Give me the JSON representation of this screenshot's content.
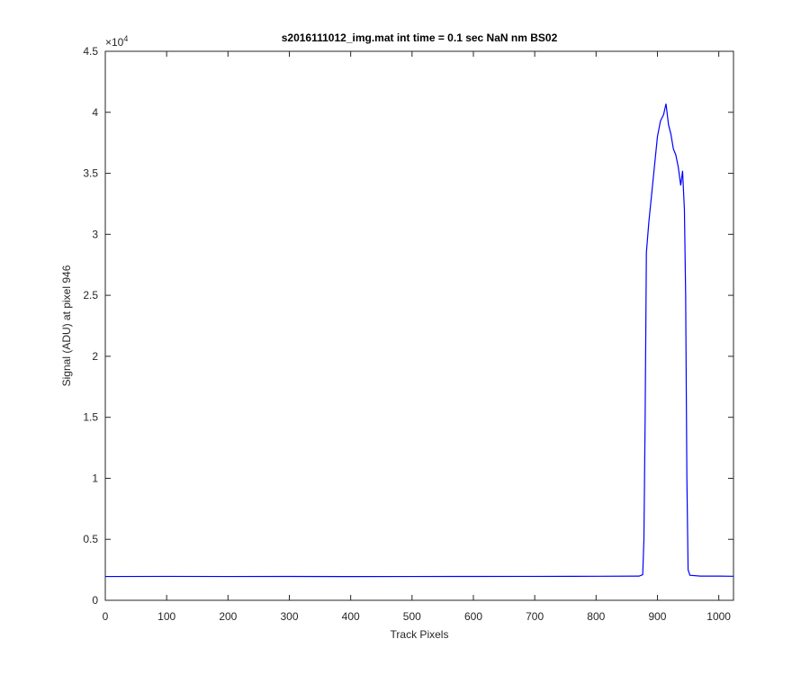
{
  "chart_data": {
    "type": "line",
    "title": "s2016111012_img.mat int time = 0.1 sec  NaN nm BS02",
    "xlabel": "Track Pixels",
    "ylabel": "Signal (ADU) at pixel 946",
    "y_multiplier": {
      "base": "×10",
      "exponent": "4"
    },
    "x": [
      0,
      100,
      200,
      300,
      400,
      500,
      600,
      700,
      800,
      870,
      876,
      878,
      880,
      882,
      886,
      890,
      895,
      900,
      905,
      910,
      914,
      918,
      922,
      926,
      930,
      934,
      938,
      941,
      944,
      946,
      948,
      950,
      953,
      970,
      1000,
      1024
    ],
    "values": [
      1950,
      1960,
      1950,
      1955,
      1945,
      1950,
      1955,
      1960,
      1970,
      1980,
      2100,
      5000,
      15000,
      28500,
      31000,
      33000,
      35500,
      38000,
      39300,
      39800,
      40700,
      39000,
      38200,
      37000,
      36500,
      35500,
      34000,
      35200,
      32000,
      25000,
      10000,
      2500,
      2050,
      1980,
      1980,
      1970
    ],
    "color": "#0000ff",
    "xlim": [
      0,
      1024
    ],
    "xticks": [
      0,
      100,
      200,
      300,
      400,
      500,
      600,
      700,
      800,
      900,
      1000
    ],
    "ylim": [
      0,
      45000
    ],
    "yticks": [
      {
        "value": 0,
        "label": "0"
      },
      {
        "value": 5000,
        "label": "0.5"
      },
      {
        "value": 10000,
        "label": "1"
      },
      {
        "value": 15000,
        "label": "1.5"
      },
      {
        "value": 20000,
        "label": "2"
      },
      {
        "value": 25000,
        "label": "2.5"
      },
      {
        "value": 30000,
        "label": "3"
      },
      {
        "value": 35000,
        "label": "3.5"
      },
      {
        "value": 40000,
        "label": "4"
      },
      {
        "value": 45000,
        "label": "4.5"
      }
    ],
    "grid": false
  }
}
